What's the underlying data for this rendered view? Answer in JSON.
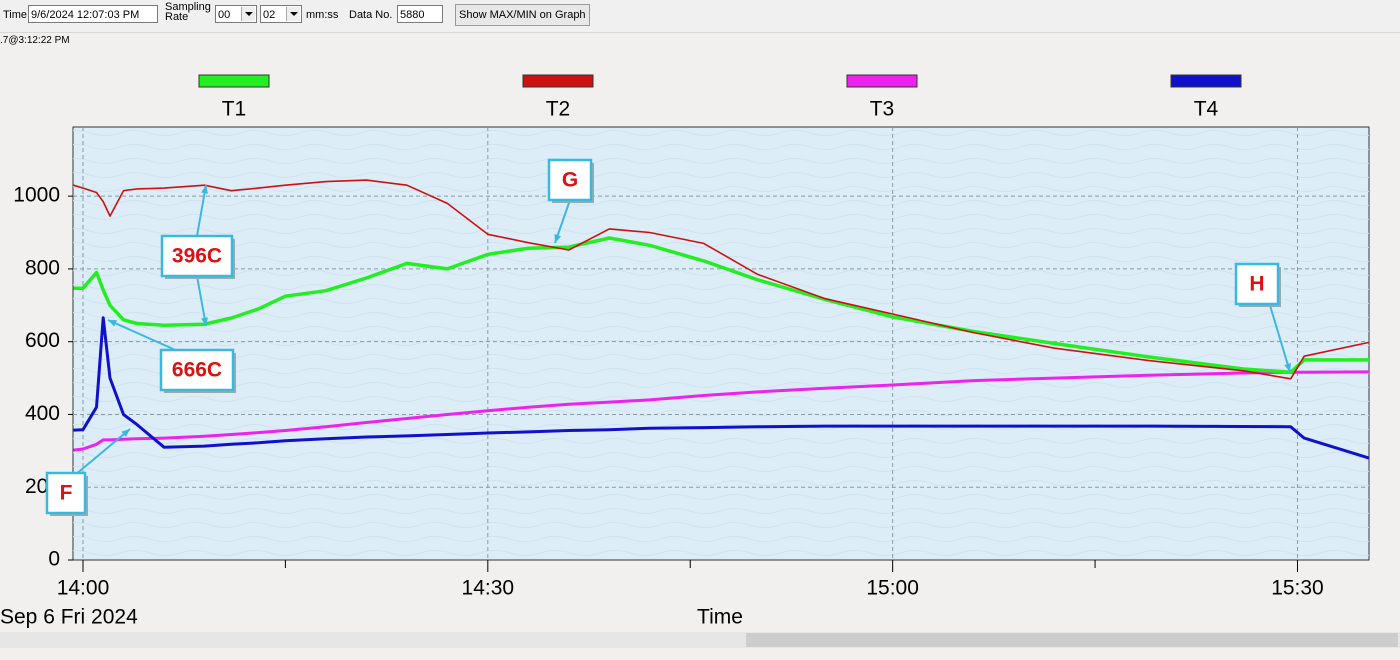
{
  "toolbar": {
    "time_label": "Time",
    "time_value": "9/6/2024 12:07:03 PM",
    "sampling_label": [
      "Sampling",
      "Rate"
    ],
    "rate_min": "00",
    "rate_sec": "02",
    "rate_unit": "mm:ss",
    "data_no_label": "Data No.",
    "data_no_value": "5880",
    "button": "Show MAX/MIN on Graph"
  },
  "status_line": ".7@3:12:22 PM",
  "chart_data": {
    "type": "line",
    "x_label": "Time",
    "date_label": "Sep 6 Fri 2024",
    "x": [
      -0.7,
      0,
      1,
      1.5,
      2,
      3,
      4,
      6,
      9,
      11,
      13,
      15,
      18,
      21,
      24,
      27,
      30,
      33,
      36,
      39,
      42,
      46,
      50,
      55,
      60,
      66,
      72,
      79,
      86,
      89.5,
      90.5,
      95.3
    ],
    "xlim": [
      -0.74,
      95.3
    ],
    "xticks": [
      {
        "value": 0,
        "label": "14:00"
      },
      {
        "value": 30,
        "label": "14:30"
      },
      {
        "value": 60,
        "label": "15:00"
      },
      {
        "value": 90,
        "label": "15:30"
      }
    ],
    "xminorticks": [
      15,
      45,
      75
    ],
    "ylim": [
      0,
      1190
    ],
    "yticks": [
      0,
      200,
      400,
      600,
      800,
      1000
    ],
    "grid": true,
    "legend": "top",
    "series": [
      {
        "name": "T1",
        "color": "#22ee22",
        "width": 3.5,
        "values": [
          747,
          747,
          790,
          742,
          700,
          660,
          650,
          645,
          648,
          665,
          690,
          725,
          740,
          775,
          815,
          800,
          840,
          857,
          860,
          885,
          865,
          822,
          770,
          716,
          668,
          628,
          595,
          558,
          525,
          516,
          550,
          550
        ]
      },
      {
        "name": "T2",
        "color": "#cc1111",
        "width": 1.6,
        "values": [
          1030,
          1022,
          1010,
          985,
          945,
          1015,
          1020,
          1022,
          1030,
          1015,
          1022,
          1030,
          1040,
          1044,
          1030,
          980,
          895,
          872,
          852,
          910,
          900,
          870,
          785,
          718,
          676,
          625,
          582,
          548,
          520,
          498,
          560,
          598
        ]
      },
      {
        "name": "T3",
        "color": "#ee22ee",
        "width": 3,
        "values": [
          302,
          305,
          318,
          330,
          330,
          332,
          333,
          335,
          340,
          345,
          350,
          356,
          366,
          378,
          389,
          400,
          410,
          420,
          428,
          434,
          440,
          452,
          462,
          472,
          481,
          493,
          500,
          508,
          514,
          516,
          516,
          517
        ]
      },
      {
        "name": "T4",
        "color": "#1111cc",
        "width": 3,
        "values": [
          357,
          358,
          420,
          666,
          500,
          400,
          372,
          310,
          313,
          318,
          322,
          328,
          333,
          338,
          341,
          345,
          349,
          352,
          356,
          358,
          362,
          364,
          366,
          368,
          368,
          368,
          368,
          368,
          367,
          366,
          335,
          280
        ]
      }
    ],
    "annotations": [
      "396C",
      "666C",
      "F",
      "G",
      "H"
    ]
  }
}
